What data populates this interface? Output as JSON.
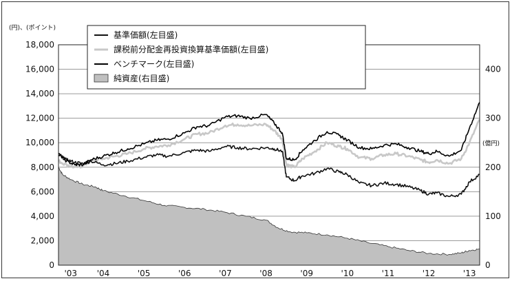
{
  "chart_data": {
    "type": "line",
    "left_axis": {
      "unit_label": "(円)、(ポイント)",
      "ylim": [
        0,
        18000
      ],
      "ticks": [
        "0",
        "2,000",
        "4,000",
        "6,000",
        "8,000",
        "10,000",
        "12,000",
        "14,000",
        "16,000",
        "18,000"
      ]
    },
    "right_axis": {
      "unit_label": "(億円)",
      "ylim": [
        0,
        450
      ],
      "ticks": [
        "0",
        "100",
        "200",
        "300",
        "400"
      ]
    },
    "x_axis": {
      "range": [
        2002.9,
        2013.25
      ],
      "ticks": [
        {
          "label": "'03",
          "x": 2003.2
        },
        {
          "label": "'04",
          "x": 2004.0
        },
        {
          "label": "'05",
          "x": 2005.0
        },
        {
          "label": "'06",
          "x": 2006.0
        },
        {
          "label": "'07",
          "x": 2007.0
        },
        {
          "label": "'08",
          "x": 2008.0
        },
        {
          "label": "'09",
          "x": 2009.0
        },
        {
          "label": "'10",
          "x": 2010.0
        },
        {
          "label": "'11",
          "x": 2011.0
        },
        {
          "label": "'12",
          "x": 2012.0
        },
        {
          "label": "'13",
          "x": 2013.0
        }
      ]
    },
    "grid": true,
    "legend_placement": "top-left",
    "series": [
      {
        "name": "基準価額(左目盛)",
        "axis": "left",
        "style": "line",
        "color": "#111111",
        "x": [
          2002.9,
          2003.1,
          2003.3,
          2003.5,
          2003.7,
          2004.0,
          2004.3,
          2004.6,
          2005.0,
          2005.3,
          2005.6,
          2006.0,
          2006.3,
          2006.6,
          2007.0,
          2007.3,
          2007.6,
          2008.0,
          2008.2,
          2008.4,
          2008.5,
          2008.7,
          2008.9,
          2009.2,
          2009.5,
          2009.8,
          2010.0,
          2010.3,
          2010.6,
          2010.9,
          2011.2,
          2011.5,
          2011.8,
          2012.0,
          2012.2,
          2012.5,
          2012.8,
          2013.0,
          2013.25
        ],
        "y": [
          9000,
          8600,
          8400,
          8300,
          8500,
          8200,
          8300,
          8500,
          8800,
          9000,
          8900,
          9200,
          9400,
          9300,
          9700,
          9600,
          9500,
          9600,
          9500,
          9300,
          7200,
          6900,
          7300,
          7500,
          7900,
          7600,
          7400,
          6700,
          6500,
          6700,
          6600,
          6400,
          6100,
          5800,
          5900,
          5600,
          5800,
          6800,
          7400
        ]
      },
      {
        "name": "課税前分配金再投資換算基準価額(左目盛)",
        "axis": "left",
        "style": "line",
        "color": "#c8c8c8",
        "x": [
          2002.9,
          2003.1,
          2003.3,
          2003.5,
          2003.7,
          2004.0,
          2004.3,
          2004.6,
          2005.0,
          2005.3,
          2005.6,
          2006.0,
          2006.3,
          2006.6,
          2007.0,
          2007.3,
          2007.6,
          2008.0,
          2008.2,
          2008.4,
          2008.5,
          2008.7,
          2008.9,
          2009.2,
          2009.5,
          2009.8,
          2010.0,
          2010.3,
          2010.6,
          2010.9,
          2011.2,
          2011.5,
          2011.8,
          2012.0,
          2012.2,
          2012.5,
          2012.8,
          2013.0,
          2013.25
        ],
        "y": [
          8500,
          8200,
          8000,
          8100,
          8500,
          8700,
          8900,
          9100,
          9500,
          9700,
          9800,
          10300,
          10700,
          10800,
          11400,
          11500,
          11400,
          11500,
          11000,
          10300,
          8200,
          8000,
          8700,
          9300,
          10000,
          9700,
          9500,
          8800,
          8700,
          9000,
          9100,
          8900,
          8600,
          8400,
          8600,
          8300,
          8700,
          10000,
          11900
        ]
      },
      {
        "name": "ベンチマーク(左目盛)",
        "axis": "left",
        "style": "line",
        "color": "#000000",
        "x": [
          2002.9,
          2003.1,
          2003.3,
          2003.5,
          2003.7,
          2004.0,
          2004.3,
          2004.6,
          2005.0,
          2005.3,
          2005.6,
          2006.0,
          2006.3,
          2006.6,
          2007.0,
          2007.3,
          2007.6,
          2008.0,
          2008.2,
          2008.4,
          2008.5,
          2008.7,
          2008.9,
          2009.2,
          2009.5,
          2009.8,
          2010.0,
          2010.3,
          2010.6,
          2010.9,
          2011.2,
          2011.5,
          2011.8,
          2012.0,
          2012.2,
          2012.5,
          2012.8,
          2013.0,
          2013.25
        ],
        "y": [
          9100,
          8500,
          8200,
          8200,
          8600,
          8900,
          9200,
          9500,
          9900,
          10200,
          10300,
          10800,
          11300,
          11400,
          12100,
          12200,
          12000,
          12300,
          11600,
          10800,
          8700,
          8600,
          9400,
          10200,
          10900,
          10600,
          10200,
          9600,
          9500,
          9800,
          9900,
          9600,
          9300,
          9100,
          9300,
          8900,
          9400,
          11200,
          13300
        ]
      },
      {
        "name": "純資産(右目盛)",
        "axis": "right",
        "style": "area",
        "color": "#c0c0c0",
        "x": [
          2002.9,
          2003.0,
          2003.2,
          2003.5,
          2003.8,
          2004.0,
          2004.5,
          2005.0,
          2005.5,
          2006.0,
          2006.5,
          2007.0,
          2007.5,
          2008.0,
          2008.3,
          2008.6,
          2009.0,
          2009.5,
          2010.0,
          2010.5,
          2011.0,
          2011.5,
          2012.0,
          2012.5,
          2012.8,
          2013.0,
          2013.25
        ],
        "y": [
          200,
          185,
          175,
          165,
          160,
          152,
          142,
          132,
          122,
          118,
          114,
          108,
          100,
          92,
          76,
          68,
          66,
          62,
          55,
          46,
          38,
          30,
          24,
          22,
          25,
          30,
          33
        ]
      }
    ]
  }
}
